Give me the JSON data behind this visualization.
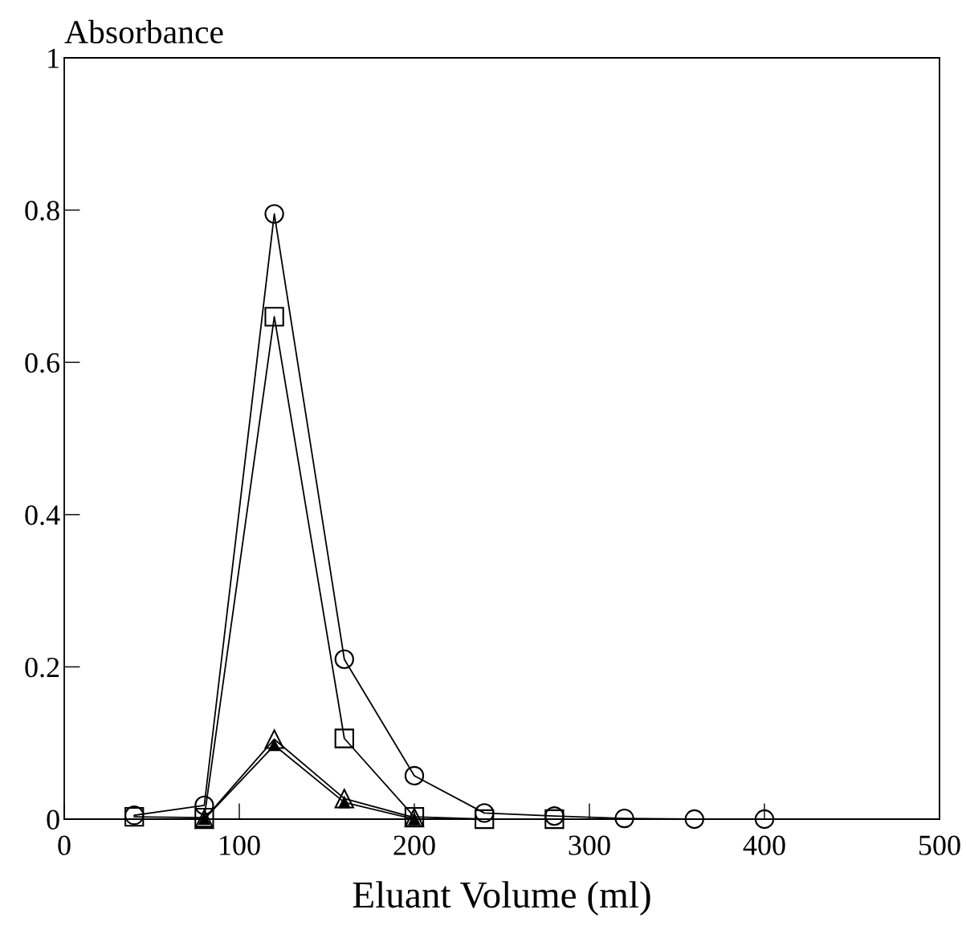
{
  "chart_data": {
    "type": "line",
    "ylabel": "Absorbance",
    "xlabel": "Eluant Volume (ml)",
    "xlim": [
      0,
      500
    ],
    "xticks": [
      0,
      100,
      200,
      300,
      400,
      500
    ],
    "ylim": [
      0,
      1
    ],
    "yticks": [
      0,
      0.2,
      0.4,
      0.6,
      0.8,
      1
    ],
    "grid": false,
    "legend": false,
    "series": [
      {
        "color": "#000000",
        "marker": "circle",
        "x": [
          40,
          80,
          120,
          160,
          200,
          240,
          280,
          320,
          360,
          400
        ],
        "values": [
          0.005,
          0.018,
          0.795,
          0.21,
          0.057,
          0.008,
          0.004,
          0.001,
          0.0,
          0.0
        ]
      },
      {
        "color": "#000000",
        "marker": "square",
        "x": [
          40,
          80,
          120,
          160,
          200,
          240,
          280
        ],
        "values": [
          0.003,
          0.002,
          0.66,
          0.106,
          0.003,
          0.0,
          0.0
        ]
      },
      {
        "color": "#000000",
        "marker": "triangle",
        "x": [
          80,
          120,
          160,
          200
        ],
        "values": [
          0.0,
          0.105,
          0.027,
          0.002
        ]
      },
      {
        "color": "#000000",
        "marker": "triangle",
        "x": [
          80,
          120,
          160,
          200
        ],
        "values": [
          0.0,
          0.097,
          0.022,
          0.0
        ]
      }
    ]
  }
}
